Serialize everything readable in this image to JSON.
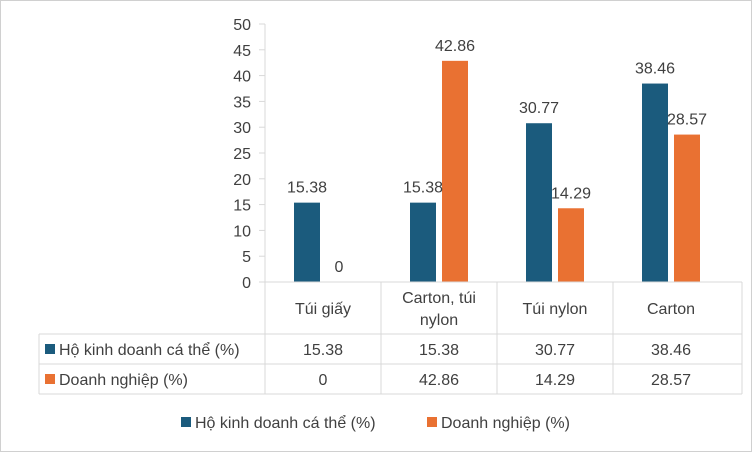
{
  "chart_data": {
    "type": "bar",
    "categories": [
      [
        "Túi giấy"
      ],
      [
        "Carton, túi",
        "nylon"
      ],
      [
        "Túi nylon"
      ],
      [
        "Carton"
      ]
    ],
    "series": [
      {
        "name": "Hộ kinh doanh cá thể (%)",
        "color": "#1b5b7d",
        "values": [
          15.38,
          15.38,
          30.77,
          38.46
        ],
        "labels": [
          "15.38",
          "15.38",
          "30.77",
          "38.46"
        ]
      },
      {
        "name": "Doanh nghiệp (%)",
        "color": "#e97132",
        "values": [
          0,
          42.86,
          14.29,
          28.57
        ],
        "labels": [
          "0",
          "42.86",
          "14.29",
          "28.57"
        ]
      }
    ],
    "ylim": [
      0,
      50
    ],
    "yticks": [
      "0",
      "5",
      "10",
      "15",
      "20",
      "25",
      "30",
      "35",
      "40",
      "45",
      "50"
    ],
    "title": "",
    "xlabel": "",
    "ylabel": "",
    "grid": false,
    "legend": "bottom",
    "data_table": true
  }
}
